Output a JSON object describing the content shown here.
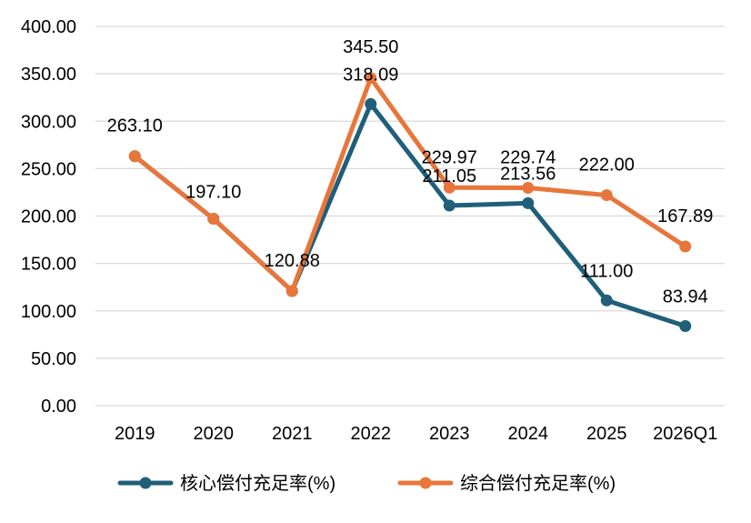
{
  "chart_data": {
    "type": "line",
    "title": "",
    "xlabel": "",
    "ylabel": "",
    "categories": [
      "2019",
      "2020",
      "2021",
      "2022",
      "2023",
      "2024",
      "2025",
      "2026Q1"
    ],
    "ylim": [
      0,
      400
    ],
    "yticks": [
      0,
      50,
      100,
      150,
      200,
      250,
      300,
      350,
      400
    ],
    "ytick_labels": [
      "0.00",
      "50.00",
      "100.00",
      "150.00",
      "200.00",
      "250.00",
      "300.00",
      "350.00",
      "400.00"
    ],
    "grid": true,
    "legend_position": "bottom",
    "series": [
      {
        "name": "核心偿付充足率(%)",
        "color": "#1f5f7a",
        "values": [
          263.1,
          197.1,
          120.88,
          318.09,
          211.05,
          213.56,
          111.0,
          83.94
        ],
        "labels": [
          null,
          null,
          null,
          "318.09",
          "211.05",
          "213.56",
          "111.00",
          "83.94"
        ]
      },
      {
        "name": "综合偿付充足率(%)",
        "color": "#e8763a",
        "values": [
          263.1,
          197.1,
          120.88,
          345.5,
          229.97,
          229.74,
          222.0,
          167.89
        ],
        "labels": [
          "263.10",
          "197.10",
          "120.88",
          "345.50",
          "229.97",
          "229.74",
          "222.00",
          "167.89"
        ]
      }
    ]
  }
}
